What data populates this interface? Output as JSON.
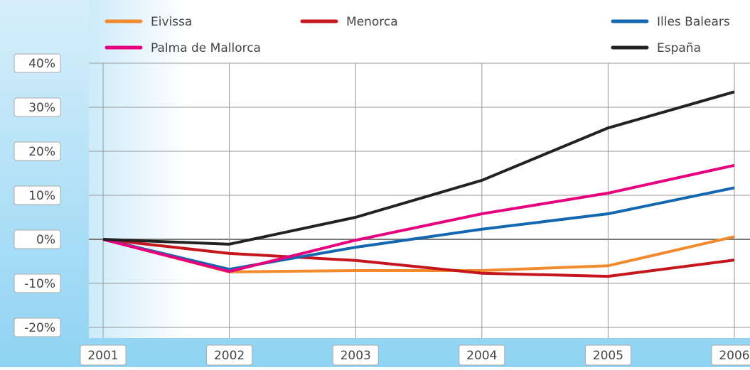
{
  "chart_data": {
    "type": "line",
    "x": [
      2001,
      2002,
      2003,
      2004,
      2005,
      2006
    ],
    "xlim": [
      2001,
      2006
    ],
    "xticks": [
      2001,
      2002,
      2003,
      2004,
      2005,
      2006
    ],
    "ylim": [
      -20,
      40
    ],
    "yticks": [
      {
        "value": -20,
        "label": "-20%"
      },
      {
        "value": -10,
        "label": "-10%"
      },
      {
        "value": 0,
        "label": "0%"
      },
      {
        "value": 10,
        "label": "10%"
      },
      {
        "value": 20,
        "label": "20%"
      },
      {
        "value": 30,
        "label": "30%"
      },
      {
        "value": 40,
        "label": "40%"
      }
    ],
    "grid": true,
    "series": [
      {
        "name": "Eivissa",
        "color": "#f28a2e",
        "values": [
          0,
          -7.4,
          -7.1,
          -7.1,
          -6,
          0.6
        ]
      },
      {
        "name": "Menorca",
        "color": "#c4161c",
        "values": [
          0,
          -3.2,
          -4.8,
          -7.7,
          -8.4,
          -4.7
        ]
      },
      {
        "name": "Illes Balears",
        "color": "#1367b0",
        "values": [
          0,
          -6.8,
          -1.8,
          2.3,
          5.8,
          11.7
        ]
      },
      {
        "name": "Palma de Mallorca",
        "color": "#e6007e",
        "values": [
          0,
          -7.3,
          -0.2,
          5.8,
          10.5,
          16.8
        ]
      },
      {
        "name": "España",
        "color": "#222222",
        "values": [
          0,
          -1.1,
          5,
          13.4,
          25.3,
          33.5
        ]
      }
    ]
  }
}
